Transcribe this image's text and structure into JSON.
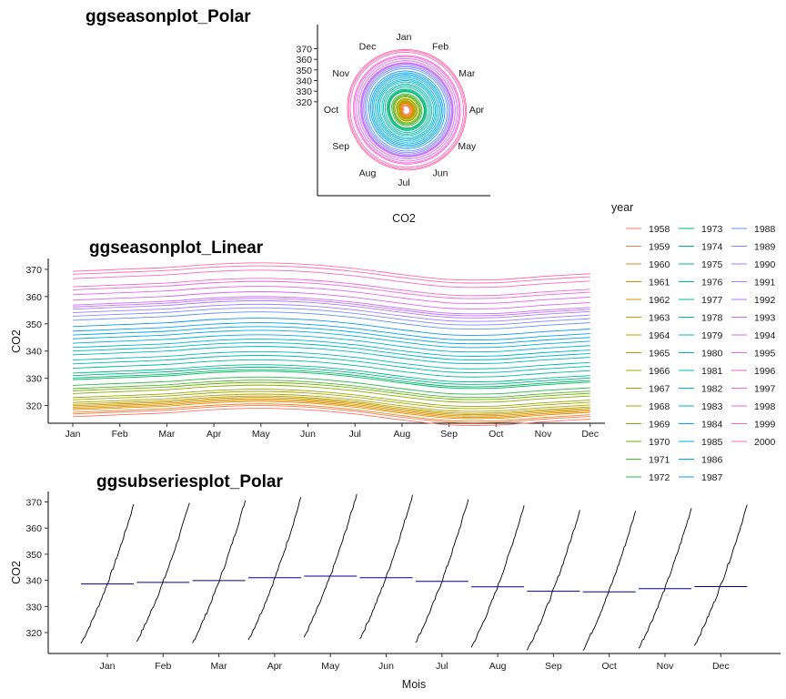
{
  "chart_data": [
    {
      "type": "line",
      "subtype": "polar-seasonal",
      "title": "ggseasonplot_Polar",
      "xlabel": "CO2",
      "months": [
        "Jan",
        "Feb",
        "Mar",
        "Apr",
        "May",
        "Jun",
        "Jul",
        "Aug",
        "Sep",
        "Oct",
        "Nov",
        "Dec"
      ],
      "r_ticks": [
        320,
        330,
        340,
        350,
        360,
        370
      ],
      "rlim": [
        313,
        373
      ]
    },
    {
      "type": "line",
      "subtype": "seasonal",
      "title": "ggseasonplot_Linear",
      "xlabel": "",
      "ylabel": "CO2",
      "categories": [
        "Jan",
        "Feb",
        "Mar",
        "Apr",
        "May",
        "Jun",
        "Jul",
        "Aug",
        "Sep",
        "Oct",
        "Nov",
        "Dec"
      ],
      "y_ticks": [
        320,
        330,
        340,
        350,
        360,
        370
      ],
      "ylim": [
        313.5,
        374
      ],
      "years": [
        1958,
        1959,
        1960,
        1961,
        1962,
        1963,
        1964,
        1965,
        1966,
        1967,
        1968,
        1969,
        1970,
        1971,
        1972,
        1973,
        1974,
        1975,
        1976,
        1977,
        1978,
        1979,
        1980,
        1981,
        1982,
        1983,
        1984,
        1985,
        1986,
        1987,
        1988,
        1989,
        1990,
        1991,
        1992,
        1993,
        1994,
        1995,
        1996,
        1997,
        1998,
        1999,
        2000
      ],
      "annual_base": [
        316.0,
        317.0,
        317.6,
        318.5,
        319.0,
        319.5,
        320.0,
        320.5,
        321.2,
        322.2,
        323.0,
        324.5,
        325.5,
        326.3,
        327.5,
        329.6,
        330.2,
        331.1,
        332.0,
        333.8,
        335.4,
        336.8,
        338.7,
        340.1,
        341.4,
        343.0,
        344.6,
        346.0,
        347.4,
        349.1,
        351.4,
        352.9,
        354.2,
        355.5,
        356.3,
        357.0,
        358.8,
        360.8,
        362.6,
        363.7,
        366.7,
        368.3,
        369.4
      ],
      "seasonal_offset": [
        -0.1,
        0.6,
        1.3,
        2.5,
        3.0,
        2.4,
        0.9,
        -1.3,
        -3.1,
        -3.2,
        -2.0,
        -1.0
      ]
    },
    {
      "type": "line",
      "subtype": "subseries",
      "title": "ggsubseriesplot_Polar",
      "xlabel": "Mois",
      "ylabel": "CO2",
      "categories": [
        "Jan",
        "Feb",
        "Mar",
        "Apr",
        "May",
        "Jun",
        "Jul",
        "Aug",
        "Sep",
        "Oct",
        "Nov",
        "Dec"
      ],
      "y_ticks": [
        320,
        330,
        340,
        350,
        360,
        370
      ],
      "ylim": [
        312,
        374
      ],
      "monthly_means": [
        338.6,
        339.2,
        339.9,
        341.0,
        341.6,
        341.0,
        339.6,
        337.5,
        335.8,
        335.6,
        336.8,
        337.6
      ],
      "monthly_range": [
        [
          315.8,
          369.1
        ],
        [
          316.6,
          369.6
        ],
        [
          316.0,
          370.6
        ],
        [
          317.2,
          371.8
        ],
        [
          318.2,
          373.0
        ],
        [
          317.6,
          372.7
        ],
        [
          316.2,
          371.0
        ],
        [
          314.3,
          368.7
        ],
        [
          313.3,
          366.9
        ],
        [
          313.2,
          366.5
        ],
        [
          314.0,
          367.6
        ],
        [
          315.0,
          368.9
        ]
      ]
    }
  ],
  "legend": {
    "title": "year",
    "placement": "right",
    "colors": [
      "#F8766D",
      "#F47D4E",
      "#EE8529",
      "#E58B00",
      "#DC9100",
      "#D39600",
      "#C89B00",
      "#BDA000",
      "#B0A400",
      "#A2A800",
      "#93AB00",
      "#82AF00",
      "#6EB100",
      "#55B42F",
      "#2CB647",
      "#00B75C",
      "#00B86E",
      "#00B97F",
      "#00BA8E",
      "#00BA9C",
      "#00B9A9",
      "#00B8B5",
      "#00B7C1",
      "#00B5CC",
      "#00B2D6",
      "#00AFDF",
      "#00AAE7",
      "#00A5EF",
      "#009FF5",
      "#0B98FA",
      "#5E91FD",
      "#7F89FF",
      "#9881FF",
      "#AC7AFF",
      "#BE73FD",
      "#CD6CF9",
      "#D967F3",
      "#E566EB",
      "#EE66DF",
      "#F666D2",
      "#FB67C3",
      "#FE69B2",
      "#FF6CA0"
    ]
  }
}
